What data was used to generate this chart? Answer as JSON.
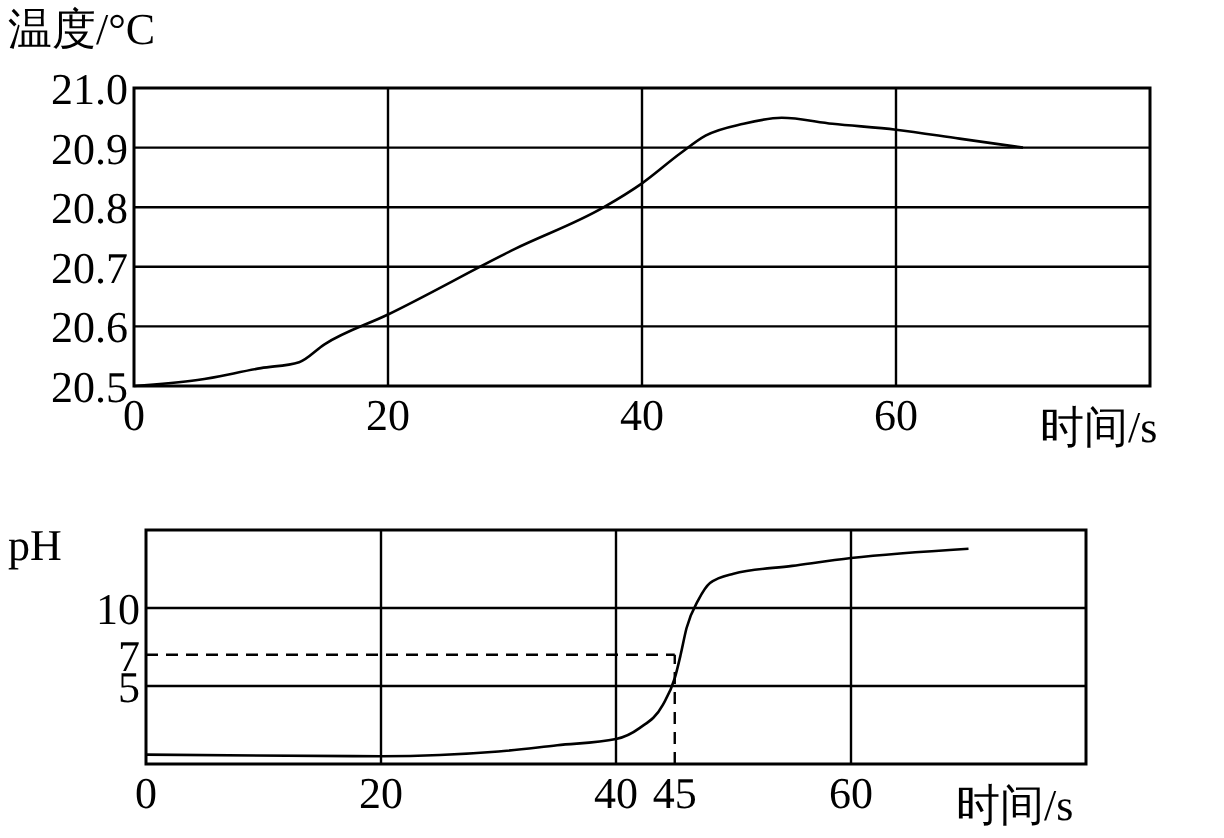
{
  "chart_data": [
    {
      "type": "line",
      "ylabel": "温度/°C",
      "xlabel": "时间/s",
      "xlim": [
        0,
        80
      ],
      "ylim": [
        20.5,
        21.0
      ],
      "xticks": [
        0,
        20,
        40,
        60,
        {
          "value": 80,
          "label": null
        }
      ],
      "yticks": [
        20.5,
        20.6,
        20.7,
        20.8,
        20.9,
        {
          "value": 21.0,
          "label": "21.0"
        }
      ],
      "grid": true,
      "color": "#000000",
      "x": [
        0,
        5,
        10,
        13,
        15,
        20,
        30,
        37,
        40,
        43,
        45,
        48,
        51,
        55,
        60,
        65,
        70
      ],
      "values": [
        20.5,
        20.51,
        20.53,
        20.54,
        20.57,
        20.62,
        20.73,
        20.8,
        20.84,
        20.89,
        20.92,
        20.94,
        20.95,
        20.94,
        20.93,
        20.915,
        20.9
      ]
    },
    {
      "type": "line",
      "ylabel": "pH",
      "xlabel": "时间/s",
      "xlim": [
        0,
        80
      ],
      "ylim": [
        0,
        15
      ],
      "xticks": [
        0,
        20,
        40,
        45,
        60,
        {
          "value": 80,
          "label": null
        }
      ],
      "yticks": [
        5,
        7,
        10,
        {
          "value": 15,
          "label": null
        }
      ],
      "grid": true,
      "color": "#000000",
      "x": [
        0,
        20,
        30,
        35,
        40,
        42,
        44,
        45,
        45.5,
        46,
        47,
        48,
        50,
        55,
        60,
        70
      ],
      "values": [
        0.6,
        0.5,
        0.8,
        1.2,
        1.6,
        2.3,
        3.8,
        5.5,
        7,
        8.7,
        10.5,
        11.6,
        12.2,
        12.7,
        13.2,
        13.8
      ],
      "ref_lines": [
        {
          "axis": "y",
          "value": 7,
          "line_style": "dashed"
        },
        {
          "axis": "x",
          "value": 45,
          "line_style": "dashed"
        }
      ]
    }
  ]
}
